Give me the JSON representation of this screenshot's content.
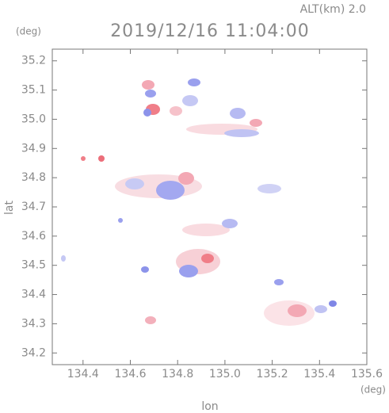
{
  "chart_data": {
    "type": "map",
    "title": "2019/12/16 11:04:00",
    "altitude": "ALT(km) 2.0",
    "y_unit": "(deg)",
    "x_unit": "(deg)",
    "x_label": "lon",
    "y_label": "lat",
    "xlim": [
      134.27,
      135.6
    ],
    "ylim": [
      34.16,
      35.24
    ],
    "xticks": [
      134.4,
      134.6,
      134.8,
      {
        "value": 135.0,
        "label": "135.0"
      },
      135.2,
      135.4,
      135.6
    ],
    "yticks": [
      34.2,
      34.3,
      34.4,
      34.5,
      34.6,
      34.7,
      34.8,
      34.9,
      {
        "value": 35.0,
        "label": "35.0"
      },
      35.1,
      35.2
    ]
  }
}
